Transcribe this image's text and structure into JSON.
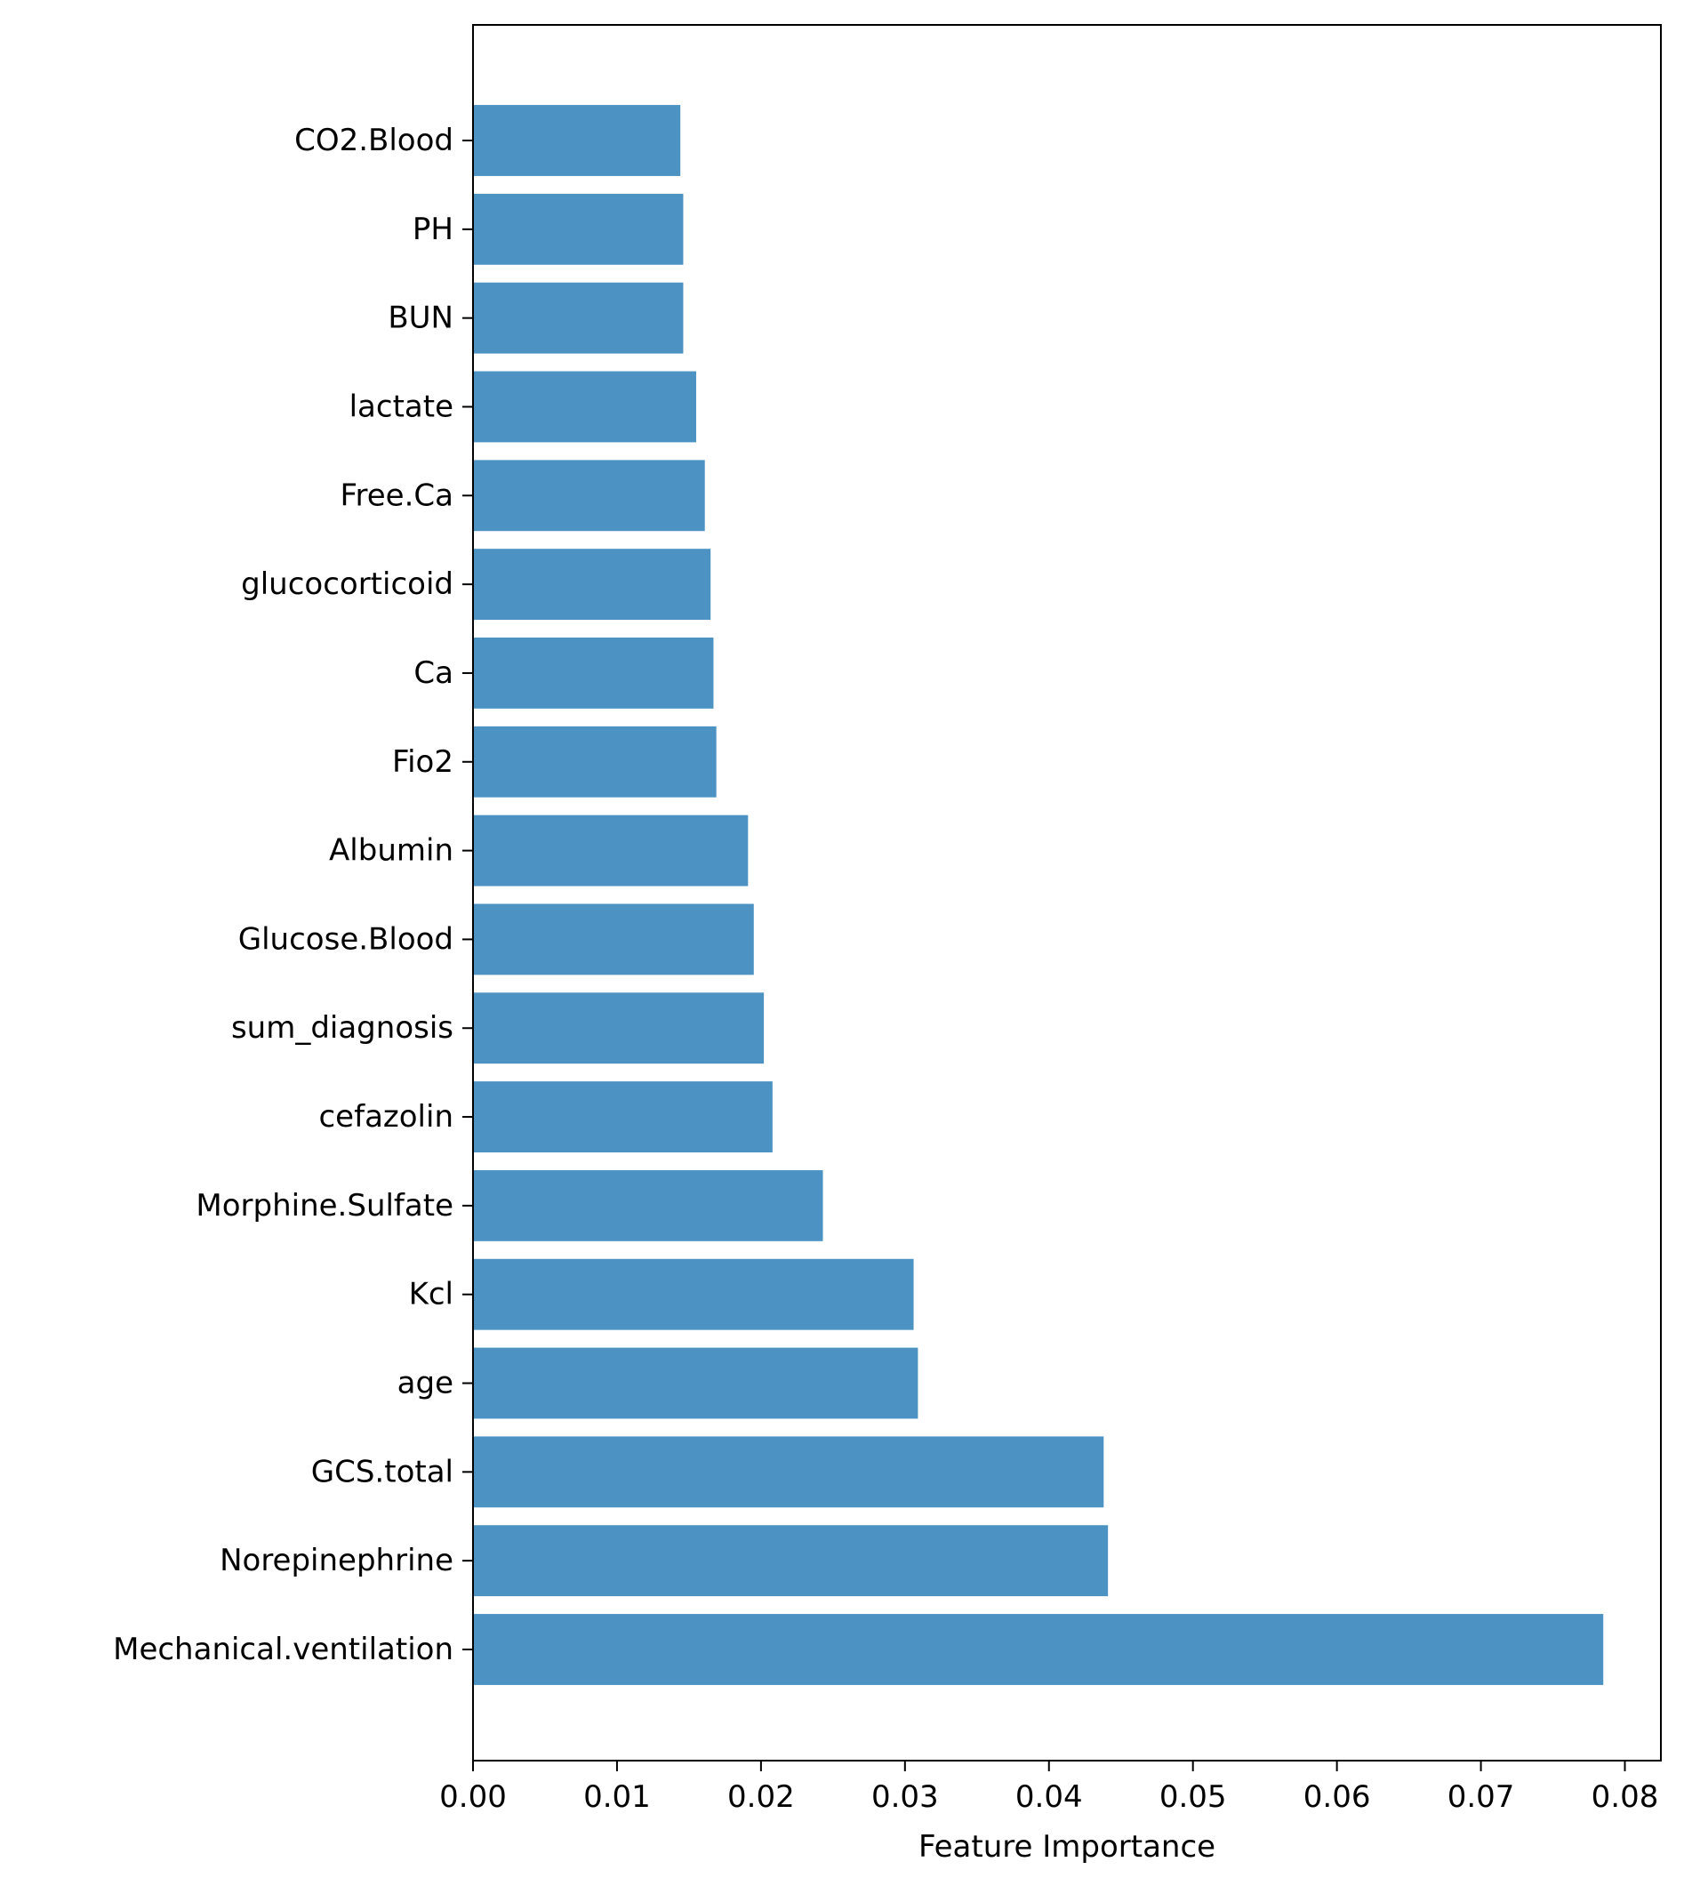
{
  "chart_data": {
    "type": "bar",
    "orientation": "horizontal",
    "title": "",
    "xlabel": "Feature Importance",
    "ylabel": "",
    "xlim": [
      0,
      0.0825
    ],
    "x_ticks": [
      "0.00",
      "0.01",
      "0.02",
      "0.03",
      "0.04",
      "0.05",
      "0.06",
      "0.07",
      "0.08"
    ],
    "x_tick_values": [
      0,
      0.01,
      0.02,
      0.03,
      0.04,
      0.05,
      0.06,
      0.07,
      0.08
    ],
    "grid": false,
    "legend": "none",
    "bar_color": "#4c92c3",
    "categories": [
      "Mechanical.ventilation",
      "Norepinephrine",
      "GCS.total",
      "age",
      "Kcl",
      "Morphine.Sulfate",
      "cefazolin",
      "sum_diagnosis",
      "Glucose.Blood",
      "Albumin",
      "Fio2",
      "Ca",
      "glucocorticoid",
      "Free.Ca",
      "lactate",
      "BUN",
      "PH",
      "CO2.Blood"
    ],
    "values": [
      0.0785,
      0.0441,
      0.0438,
      0.0309,
      0.0306,
      0.0243,
      0.0208,
      0.0202,
      0.0195,
      0.0191,
      0.0169,
      0.0167,
      0.0165,
      0.0161,
      0.0155,
      0.0146,
      0.0146,
      0.0144
    ]
  }
}
